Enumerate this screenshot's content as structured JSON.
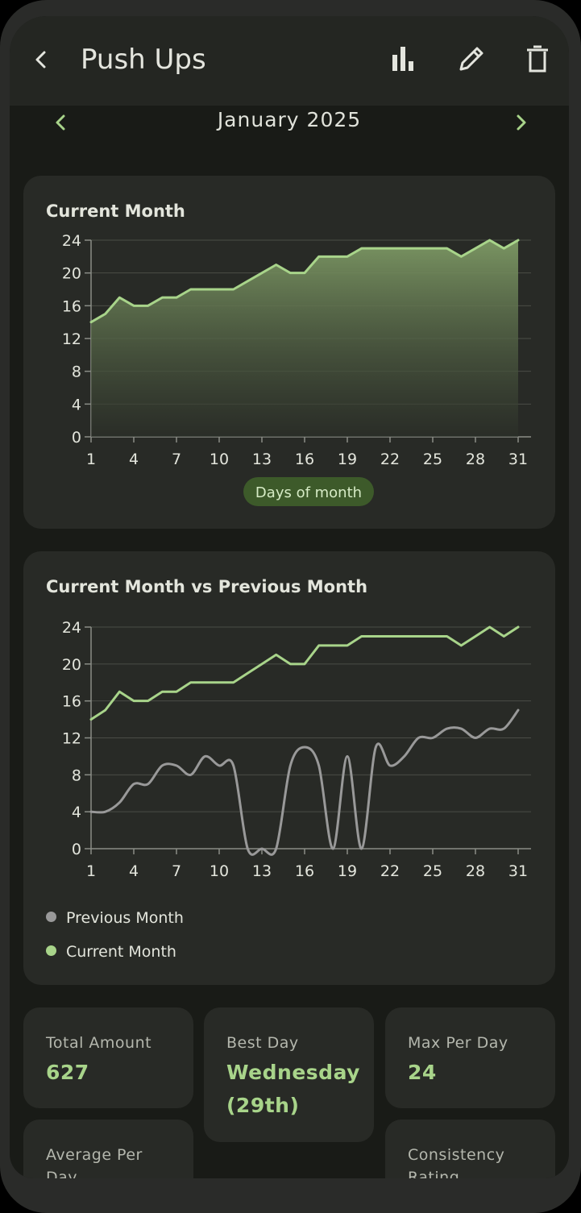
{
  "app": {
    "title": "Push Ups"
  },
  "icons": {
    "back": "back-arrow-icon",
    "stats": "bar-chart-icon",
    "edit": "pencil-icon",
    "delete": "trash-icon",
    "prev": "chevron-left-icon",
    "next": "chevron-right-icon"
  },
  "month_nav": {
    "label": "January 2025"
  },
  "colors": {
    "current": "#a8d48a",
    "previous": "#999999",
    "accent_badge": "#3d5a2a"
  },
  "chart1": {
    "title": "Current Month",
    "badge": "Days of month"
  },
  "chart2": {
    "title": "Current Month vs Previous Month",
    "legend": [
      "Previous Month",
      "Current Month"
    ]
  },
  "chart_data": [
    {
      "type": "area",
      "title": "Current Month",
      "xlabel": "Days of month",
      "xticks": [
        1,
        4,
        7,
        10,
        13,
        16,
        19,
        22,
        25,
        28,
        31
      ],
      "yticks": [
        0,
        4,
        8,
        12,
        16,
        20,
        24
      ],
      "ylim": [
        0,
        24
      ],
      "xlim": [
        1,
        31
      ],
      "grid": true,
      "x": [
        1,
        2,
        3,
        4,
        5,
        6,
        7,
        8,
        9,
        10,
        11,
        12,
        13,
        14,
        15,
        16,
        17,
        18,
        19,
        20,
        21,
        22,
        23,
        24,
        25,
        26,
        27,
        28,
        29,
        30,
        31
      ],
      "series": [
        {
          "name": "Current Month",
          "values": [
            14,
            15,
            17,
            16,
            16,
            17,
            17,
            18,
            18,
            18,
            18,
            19,
            20,
            21,
            20,
            20,
            22,
            22,
            22,
            23,
            23,
            23,
            23,
            23,
            23,
            23,
            22,
            23,
            24,
            23,
            24
          ]
        }
      ]
    },
    {
      "type": "line",
      "title": "Current Month vs Previous Month",
      "xticks": [
        1,
        4,
        7,
        10,
        13,
        16,
        19,
        22,
        25,
        28,
        31
      ],
      "yticks": [
        0,
        4,
        8,
        12,
        16,
        20,
        24
      ],
      "ylim": [
        0,
        24
      ],
      "xlim": [
        1,
        31
      ],
      "grid": true,
      "legend_position": "bottom-left",
      "x": [
        1,
        2,
        3,
        4,
        5,
        6,
        7,
        8,
        9,
        10,
        11,
        12,
        13,
        14,
        15,
        16,
        17,
        18,
        19,
        20,
        21,
        22,
        23,
        24,
        25,
        26,
        27,
        28,
        29,
        30,
        31
      ],
      "series": [
        {
          "name": "Previous Month",
          "values": [
            4,
            4,
            5,
            7,
            7,
            9,
            9,
            8,
            10,
            9,
            9,
            0,
            0,
            0,
            9,
            11,
            9,
            0,
            10,
            0,
            11,
            9,
            10,
            12,
            12,
            13,
            13,
            12,
            13,
            13,
            15
          ]
        },
        {
          "name": "Current Month",
          "values": [
            14,
            15,
            17,
            16,
            16,
            17,
            17,
            18,
            18,
            18,
            18,
            19,
            20,
            21,
            20,
            20,
            22,
            22,
            22,
            23,
            23,
            23,
            23,
            23,
            23,
            23,
            22,
            23,
            24,
            23,
            24
          ]
        }
      ]
    }
  ],
  "stats": [
    {
      "label": "Total Amount",
      "value": "627"
    },
    {
      "label": "Best Day",
      "value": "Wednesday (29th)"
    },
    {
      "label": "Max Per Day",
      "value": "24"
    },
    {
      "label": "Average Per Day",
      "value": ""
    },
    {
      "label": "Consistency Rating",
      "value": ""
    }
  ]
}
